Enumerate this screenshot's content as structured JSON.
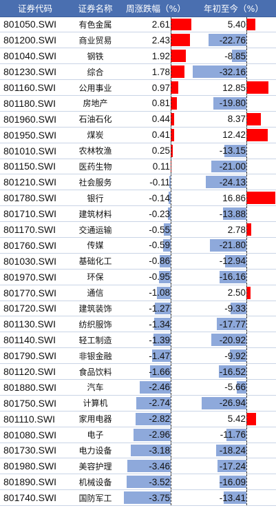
{
  "headers": {
    "code": "证券代码",
    "name": "证券名称",
    "week": "周涨跌幅（%）",
    "ytd": "年初至今（%）"
  },
  "colors": {
    "positive": "#ff0000",
    "negative": "#8ea9db",
    "header": "#4a6fb0"
  },
  "rows": [
    {
      "code": "801050.SWI",
      "name": "有色金属",
      "week": "2.61",
      "ytd": "5.40"
    },
    {
      "code": "801200.SWI",
      "name": "商业贸易",
      "week": "2.43",
      "ytd": "-22.76"
    },
    {
      "code": "801040.SWI",
      "name": "钢铁",
      "week": "1.92",
      "ytd": "-8.85"
    },
    {
      "code": "801230.SWI",
      "name": "综合",
      "week": "1.78",
      "ytd": "-32.16"
    },
    {
      "code": "801160.SWI",
      "name": "公用事业",
      "week": "0.97",
      "ytd": "12.85"
    },
    {
      "code": "801180.SWI",
      "name": "房地产",
      "week": "0.81",
      "ytd": "-19.80"
    },
    {
      "code": "801960.SWI",
      "name": "石油石化",
      "week": "0.44",
      "ytd": "8.37"
    },
    {
      "code": "801950.SWI",
      "name": "煤炭",
      "week": "0.41",
      "ytd": "12.42"
    },
    {
      "code": "801010.SWI",
      "name": "农林牧渔",
      "week": "0.25",
      "ytd": "-13.15"
    },
    {
      "code": "801150.SWI",
      "name": "医药生物",
      "week": "0.11",
      "ytd": "-21.00"
    },
    {
      "code": "801210.SWI",
      "name": "社会服务",
      "week": "-0.11",
      "ytd": "-24.13"
    },
    {
      "code": "801780.SWI",
      "name": "银行",
      "week": "-0.14",
      "ytd": "16.86"
    },
    {
      "code": "801710.SWI",
      "name": "建筑材料",
      "week": "-0.23",
      "ytd": "-13.88"
    },
    {
      "code": "801170.SWI",
      "name": "交通运输",
      "week": "-0.55",
      "ytd": "2.78"
    },
    {
      "code": "801760.SWI",
      "name": "传媒",
      "week": "-0.59",
      "ytd": "-21.80"
    },
    {
      "code": "801030.SWI",
      "name": "基础化工",
      "week": "-0.86",
      "ytd": "-12.94"
    },
    {
      "code": "801970.SWI",
      "name": "环保",
      "week": "-0.95",
      "ytd": "-16.16"
    },
    {
      "code": "801770.SWI",
      "name": "通信",
      "week": "-1.08",
      "ytd": "2.50"
    },
    {
      "code": "801720.SWI",
      "name": "建筑装饰",
      "week": "-1.27",
      "ytd": "-9.33"
    },
    {
      "code": "801130.SWI",
      "name": "纺织服饰",
      "week": "-1.34",
      "ytd": "-17.77"
    },
    {
      "code": "801140.SWI",
      "name": "轻工制造",
      "week": "-1.39",
      "ytd": "-20.92"
    },
    {
      "code": "801790.SWI",
      "name": "非银金融",
      "week": "-1.47",
      "ytd": "-9.92"
    },
    {
      "code": "801120.SWI",
      "name": "食品饮料",
      "week": "-1.66",
      "ytd": "-16.52"
    },
    {
      "code": "801880.SWI",
      "name": "汽车",
      "week": "-2.46",
      "ytd": "-5.66"
    },
    {
      "code": "801750.SWI",
      "name": "计算机",
      "week": "-2.74",
      "ytd": "-26.94"
    },
    {
      "code": "801110.SWI",
      "name": "家用电器",
      "week": "-2.82",
      "ytd": "5.42"
    },
    {
      "code": "801080.SWI",
      "name": "电子",
      "week": "-2.96",
      "ytd": "-11.76"
    },
    {
      "code": "801730.SWI",
      "name": "电力设备",
      "week": "-3.18",
      "ytd": "-18.24"
    },
    {
      "code": "801980.SWI",
      "name": "美容护理",
      "week": "-3.46",
      "ytd": "-17.24"
    },
    {
      "code": "801890.SWI",
      "name": "机械设备",
      "week": "-3.52",
      "ytd": "-16.09"
    },
    {
      "code": "801740.SWI",
      "name": "国防军工",
      "week": "-3.75",
      "ytd": "-13.41"
    }
  ]
}
